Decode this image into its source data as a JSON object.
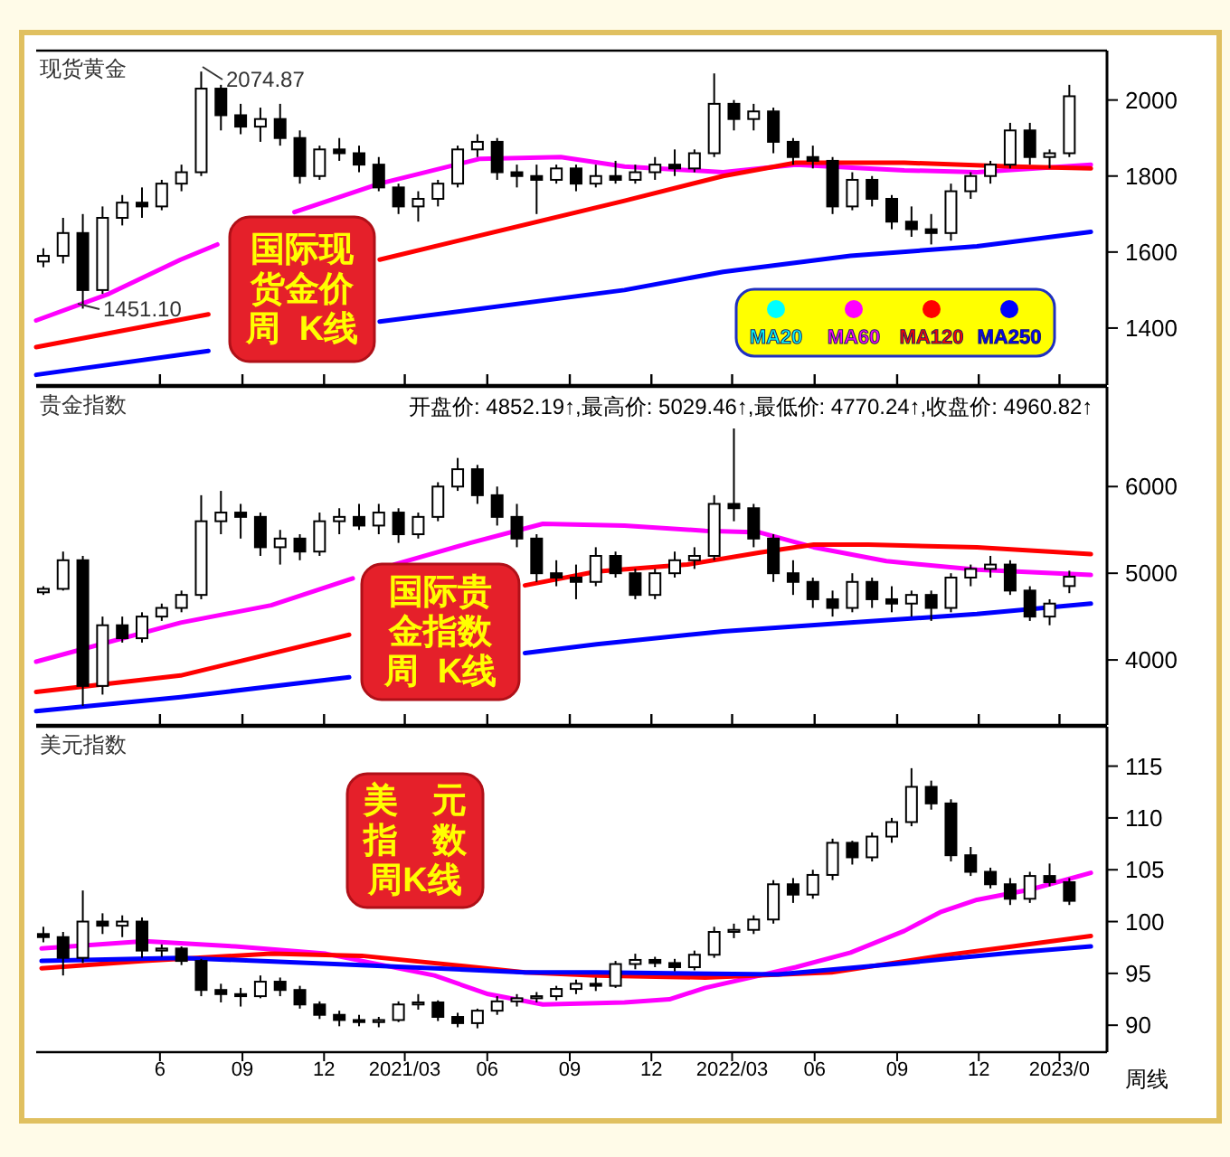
{
  "chart_data": [
    {
      "type": "candlestick",
      "title": "现货黄金",
      "xlim": [
        "2020-01-15",
        "2023-04-23"
      ],
      "ylim": [
        1250,
        2130
      ],
      "yticks": [
        1400,
        1600,
        1800,
        2000
      ],
      "tick_labels": "y",
      "legend": "bottom right",
      "xticks": [
        {
          "value": "2020-06-01",
          "label": null
        },
        {
          "value": "2020-09-01",
          "label": null
        },
        {
          "value": "2020-12-01",
          "label": null
        },
        {
          "value": "2021-03-01",
          "label": null
        },
        {
          "value": "2021-06-01",
          "label": null
        },
        {
          "value": "2021-09-01",
          "label": null
        },
        {
          "value": "2021-12-01",
          "label": null
        },
        {
          "value": "2022-03-01",
          "label": null
        },
        {
          "value": "2022-06-01",
          "label": null
        },
        {
          "value": "2022-09-01",
          "label": null
        },
        {
          "value": "2022-12-01",
          "label": null
        },
        {
          "value": "2023-03-01",
          "label": null
        }
      ],
      "x": [
        "2020-01-23",
        "2020-02-14",
        "2020-03-07",
        "2020-03-29",
        "2020-04-20",
        "2020-05-12",
        "2020-06-03",
        "2020-06-25",
        "2020-07-17",
        "2020-08-08",
        "2020-08-30",
        "2020-09-21",
        "2020-10-13",
        "2020-11-04",
        "2020-11-26",
        "2020-12-18",
        "2021-01-09",
        "2021-01-31",
        "2021-02-22",
        "2021-03-16",
        "2021-04-07",
        "2021-04-29",
        "2021-05-21",
        "2021-06-12",
        "2021-07-04",
        "2021-07-26",
        "2021-08-17",
        "2021-09-08",
        "2021-09-30",
        "2021-10-22",
        "2021-11-13",
        "2021-12-05",
        "2021-12-27",
        "2022-01-18",
        "2022-02-09",
        "2022-03-03",
        "2022-03-25",
        "2022-04-16",
        "2022-05-08",
        "2022-05-30",
        "2022-06-21",
        "2022-07-13",
        "2022-08-04",
        "2022-08-26",
        "2022-09-17",
        "2022-10-09",
        "2022-10-31",
        "2022-11-22",
        "2022-12-14",
        "2023-01-05",
        "2023-01-27",
        "2023-02-18",
        "2023-03-12"
      ],
      "ohlc": [
        [
          1575,
          1610,
          1560,
          1590
        ],
        [
          1590,
          1690,
          1570,
          1650
        ],
        [
          1650,
          1700,
          1451.1,
          1500
        ],
        [
          1500,
          1720,
          1490,
          1690
        ],
        [
          1690,
          1750,
          1670,
          1730
        ],
        [
          1730,
          1770,
          1690,
          1720
        ],
        [
          1720,
          1790,
          1710,
          1780
        ],
        [
          1780,
          1830,
          1760,
          1810
        ],
        [
          1810,
          2074.87,
          1800,
          2030
        ],
        [
          2030,
          2040,
          1920,
          1960
        ],
        [
          1960,
          1990,
          1910,
          1930
        ],
        [
          1930,
          1980,
          1890,
          1950
        ],
        [
          1950,
          1990,
          1880,
          1900
        ],
        [
          1900,
          1920,
          1780,
          1800
        ],
        [
          1800,
          1880,
          1790,
          1870
        ],
        [
          1870,
          1900,
          1840,
          1860
        ],
        [
          1860,
          1880,
          1810,
          1830
        ],
        [
          1830,
          1850,
          1760,
          1770
        ],
        [
          1770,
          1780,
          1700,
          1720
        ],
        [
          1720,
          1760,
          1680,
          1740
        ],
        [
          1740,
          1790,
          1720,
          1780
        ],
        [
          1780,
          1880,
          1770,
          1870
        ],
        [
          1870,
          1910,
          1850,
          1890
        ],
        [
          1890,
          1900,
          1790,
          1810
        ],
        [
          1810,
          1830,
          1770,
          1800
        ],
        [
          1800,
          1830,
          1700,
          1790
        ],
        [
          1790,
          1830,
          1780,
          1820
        ],
        [
          1820,
          1830,
          1760,
          1780
        ],
        [
          1780,
          1830,
          1770,
          1800
        ],
        [
          1800,
          1840,
          1780,
          1790
        ],
        [
          1790,
          1830,
          1780,
          1810
        ],
        [
          1810,
          1850,
          1790,
          1830
        ],
        [
          1830,
          1870,
          1800,
          1820
        ],
        [
          1820,
          1870,
          1810,
          1860
        ],
        [
          1860,
          2070,
          1850,
          1990
        ],
        [
          1990,
          2000,
          1920,
          1950
        ],
        [
          1950,
          1990,
          1920,
          1970
        ],
        [
          1970,
          1980,
          1860,
          1890
        ],
        [
          1890,
          1900,
          1830,
          1850
        ],
        [
          1850,
          1880,
          1820,
          1840
        ],
        [
          1840,
          1850,
          1700,
          1720
        ],
        [
          1720,
          1810,
          1710,
          1790
        ],
        [
          1790,
          1800,
          1720,
          1740
        ],
        [
          1740,
          1750,
          1660,
          1680
        ],
        [
          1680,
          1720,
          1640,
          1660
        ],
        [
          1660,
          1700,
          1620,
          1650
        ],
        [
          1650,
          1780,
          1630,
          1760
        ],
        [
          1760,
          1810,
          1740,
          1800
        ],
        [
          1800,
          1840,
          1780,
          1830
        ],
        [
          1830,
          1940,
          1820,
          1920
        ],
        [
          1920,
          1940,
          1830,
          1850
        ],
        [
          1850,
          1870,
          1820,
          1860
        ],
        [
          1860,
          2040,
          1850,
          2010
        ]
      ],
      "series": [
        {
          "name": "MA20",
          "color": "#00ffff",
          "type": "line",
          "values": [
            null,
            null,
            null,
            null,
            null,
            null,
            null,
            null,
            null,
            null,
            null,
            null,
            null,
            null,
            null,
            null,
            null,
            null,
            null,
            null,
            null,
            null,
            null,
            null,
            null,
            null,
            null,
            null,
            null,
            null,
            null,
            null,
            null,
            null,
            null,
            null,
            null,
            null,
            null,
            null,
            null,
            null,
            null,
            null,
            null,
            null,
            null,
            null,
            null,
            null,
            null,
            null,
            null
          ]
        },
        {
          "name": "MA60",
          "color": "#ff00ff",
          "type": "line",
          "x": [
            "2020-01-15",
            "2020-04-05",
            "2020-06-24",
            "2020-08-04",
            "2020-09-01",
            "2020-10-29",
            "2021-02-01",
            "2021-05-23",
            "2021-08-22",
            "2021-11-01",
            "2022-02-19",
            "2022-05-11",
            "2022-09-09",
            "2022-11-29",
            "2023-04-05"
          ],
          "values": [
            1420,
            1490,
            1580,
            1620,
            null,
            1705,
            1780,
            1845,
            1850,
            1825,
            1810,
            1830,
            1815,
            1810,
            1830
          ]
        },
        {
          "name": "MA120",
          "color": "#ff0000",
          "type": "line",
          "x": [
            "2020-01-15",
            "2020-07-25",
            "2020-10-01",
            "2021-02-01",
            "2021-11-01",
            "2022-02-19",
            "2022-05-11",
            "2022-09-09",
            "2023-01-08",
            "2023-04-05"
          ],
          "values": [
            1350,
            1436,
            null,
            1580,
            1735,
            1800,
            1835,
            1835,
            1825,
            1820
          ]
        },
        {
          "name": "MA250",
          "color": "#0000ff",
          "type": "line",
          "x": [
            "2020-01-15",
            "2020-07-25",
            "2020-10-01",
            "2021-02-01",
            "2021-11-01",
            "2022-02-19",
            "2022-07-11",
            "2022-11-29",
            "2023-04-05"
          ],
          "values": [
            1277,
            1340,
            null,
            1417,
            1500,
            1548,
            1590,
            1615,
            1653
          ]
        }
      ],
      "annotations": [
        "2074.87",
        "1451.10",
        "国际现货金价周  K线"
      ]
    },
    {
      "type": "candlestick",
      "title": "贵金指数",
      "xlim": [
        "2020-01-15",
        "2023-04-23"
      ],
      "ylim": [
        3250,
        7150
      ],
      "yticks": [
        4000,
        5000,
        6000
      ],
      "tick_labels": "y",
      "xticks": [
        {
          "value": "2020-06-01",
          "label": null
        },
        {
          "value": "2020-09-01",
          "label": null
        },
        {
          "value": "2020-12-01",
          "label": null
        },
        {
          "value": "2021-03-01",
          "label": null
        },
        {
          "value": "2021-06-01",
          "label": null
        },
        {
          "value": "2021-09-01",
          "label": null
        },
        {
          "value": "2021-12-01",
          "label": null
        },
        {
          "value": "2022-03-01",
          "label": null
        },
        {
          "value": "2022-06-01",
          "label": null
        },
        {
          "value": "2022-09-01",
          "label": null
        },
        {
          "value": "2022-12-01",
          "label": null
        },
        {
          "value": "2023-03-01",
          "label": null
        }
      ],
      "x": [
        "2020-01-23",
        "2020-02-14",
        "2020-03-07",
        "2020-03-29",
        "2020-04-20",
        "2020-05-12",
        "2020-06-03",
        "2020-06-25",
        "2020-07-17",
        "2020-08-08",
        "2020-08-30",
        "2020-09-21",
        "2020-10-13",
        "2020-11-04",
        "2020-11-26",
        "2020-12-18",
        "2021-01-09",
        "2021-01-31",
        "2021-02-22",
        "2021-03-16",
        "2021-04-07",
        "2021-04-29",
        "2021-05-21",
        "2021-06-12",
        "2021-07-04",
        "2021-07-26",
        "2021-08-17",
        "2021-09-08",
        "2021-09-30",
        "2021-10-22",
        "2021-11-13",
        "2021-12-05",
        "2021-12-27",
        "2022-01-18",
        "2022-02-09",
        "2022-03-03",
        "2022-03-25",
        "2022-04-16",
        "2022-05-08",
        "2022-05-30",
        "2022-06-21",
        "2022-07-13",
        "2022-08-04",
        "2022-08-26",
        "2022-09-17",
        "2022-10-09",
        "2022-10-31",
        "2022-11-22",
        "2022-12-14",
        "2023-01-05",
        "2023-01-27",
        "2023-02-18",
        "2023-03-12"
      ],
      "ohlc": [
        [
          4780,
          4850,
          4750,
          4820
        ],
        [
          4820,
          5250,
          4800,
          5150
        ],
        [
          5150,
          5200,
          3470,
          3700
        ],
        [
          3700,
          4500,
          3600,
          4400
        ],
        [
          4400,
          4500,
          4200,
          4250
        ],
        [
          4250,
          4550,
          4200,
          4500
        ],
        [
          4500,
          4650,
          4450,
          4600
        ],
        [
          4600,
          4800,
          4550,
          4750
        ],
        [
          4750,
          5900,
          4700,
          5600
        ],
        [
          5600,
          5950,
          5450,
          5700
        ],
        [
          5700,
          5800,
          5400,
          5650
        ],
        [
          5650,
          5700,
          5200,
          5300
        ],
        [
          5300,
          5500,
          5100,
          5400
        ],
        [
          5400,
          5450,
          5150,
          5250
        ],
        [
          5250,
          5700,
          5200,
          5600
        ],
        [
          5600,
          5750,
          5450,
          5650
        ],
        [
          5650,
          5800,
          5500,
          5550
        ],
        [
          5550,
          5800,
          5450,
          5700
        ],
        [
          5700,
          5750,
          5350,
          5450
        ],
        [
          5450,
          5700,
          5400,
          5650
        ],
        [
          5650,
          6050,
          5600,
          6000
        ],
        [
          6000,
          6330,
          5950,
          6200
        ],
        [
          6200,
          6250,
          5800,
          5900
        ],
        [
          5900,
          6000,
          5550,
          5650
        ],
        [
          5650,
          5800,
          5300,
          5400
        ],
        [
          5400,
          5450,
          4900,
          5000
        ],
        [
          5000,
          5150,
          4850,
          4950
        ],
        [
          4950,
          5100,
          4700,
          4900
        ],
        [
          4900,
          5300,
          4850,
          5200
        ],
        [
          5200,
          5250,
          4950,
          5000
        ],
        [
          5000,
          5050,
          4700,
          4750
        ],
        [
          4750,
          5050,
          4700,
          5000
        ],
        [
          5000,
          5250,
          4950,
          5150
        ],
        [
          5150,
          5300,
          5050,
          5200
        ],
        [
          5200,
          5900,
          5150,
          5800
        ],
        [
          5800,
          6670,
          5600,
          5750
        ],
        [
          5750,
          5800,
          5300,
          5400
        ],
        [
          5400,
          5450,
          4900,
          5000
        ],
        [
          5000,
          5150,
          4750,
          4900
        ],
        [
          4900,
          4950,
          4600,
          4700
        ],
        [
          4700,
          4800,
          4500,
          4600
        ],
        [
          4600,
          5000,
          4550,
          4900
        ],
        [
          4900,
          4950,
          4600,
          4700
        ],
        [
          4700,
          4850,
          4550,
          4650
        ],
        [
          4650,
          4800,
          4500,
          4750
        ],
        [
          4750,
          4800,
          4450,
          4600
        ],
        [
          4600,
          5000,
          4550,
          4950
        ],
        [
          4950,
          5100,
          4850,
          5050
        ],
        [
          5050,
          5200,
          4950,
          5100
        ],
        [
          5100,
          5150,
          4750,
          4800
        ],
        [
          4800,
          4850,
          4450,
          4500
        ],
        [
          4500,
          4700,
          4400,
          4650
        ],
        [
          4852.19,
          5029.46,
          4770.24,
          4960.82
        ]
      ],
      "series": [
        {
          "color": "#ff00ff",
          "type": "line",
          "x": [
            "2020-01-15",
            "2020-06-24",
            "2020-10-03",
            "2021-01-02",
            "2021-01-20",
            "2021-02-17",
            "2021-05-13",
            "2021-08-02",
            "2021-11-01",
            "2022-01-30",
            "2022-04-01",
            "2022-05-31",
            "2022-08-20",
            "2022-11-29",
            "2023-04-05"
          ],
          "values": [
            3980,
            4430,
            4630,
            4940,
            null,
            5100,
            5350,
            5570,
            5550,
            5490,
            5470,
            5300,
            5140,
            5040,
            4980
          ]
        },
        {
          "color": "#ff0000",
          "type": "line",
          "x": [
            "2020-01-15",
            "2020-06-24",
            "2020-12-29",
            "2021-03-01",
            "2021-07-13",
            "2021-10-01",
            "2022-01-10",
            "2022-04-01",
            "2022-05-31",
            "2022-07-31",
            "2022-11-29",
            "2023-04-05"
          ],
          "values": [
            3630,
            3820,
            4290,
            null,
            4860,
            5020,
            5100,
            5240,
            5330,
            5330,
            5300,
            5220
          ]
        },
        {
          "color": "#0000ff",
          "type": "line",
          "x": [
            "2020-01-15",
            "2020-06-24",
            "2020-12-29",
            "2021-03-01",
            "2021-07-13",
            "2021-10-01",
            "2022-02-19",
            "2022-07-11",
            "2022-11-29",
            "2023-04-05"
          ],
          "values": [
            3410,
            3570,
            3800,
            null,
            4080,
            4180,
            4330,
            4430,
            4530,
            4650
          ]
        }
      ],
      "annotations": [
        "开盘价: 4852.19↑,最高价: 5029.46↑,最低价: 4770.24↑,收盘价: 4960.82↑",
        "国际贵金指数周  K线"
      ]
    },
    {
      "type": "candlestick",
      "title": "美元指数",
      "xlim": [
        "2020-01-15",
        "2023-04-23"
      ],
      "ylim": [
        87.4,
        118.8
      ],
      "yticks": [
        90,
        95,
        100,
        105,
        110,
        115
      ],
      "xticks": [
        {
          "value": "2020-06-01",
          "label": "6"
        },
        {
          "value": "2020-09-01",
          "label": "09"
        },
        {
          "value": "2020-12-01",
          "label": "12"
        },
        {
          "value": "2021-03-01",
          "label": "2021/03"
        },
        {
          "value": "2021-06-01",
          "label": "06"
        },
        {
          "value": "2021-09-01",
          "label": "09"
        },
        {
          "value": "2021-12-01",
          "label": "12"
        },
        {
          "value": "2022-03-01",
          "label": "2022/03"
        },
        {
          "value": "2022-06-01",
          "label": "06"
        },
        {
          "value": "2022-09-01",
          "label": "09"
        },
        {
          "value": "2022-12-01",
          "label": "12"
        },
        {
          "value": "2023-03-01",
          "label": "2023/0"
        }
      ],
      "x": [
        "2020-01-23",
        "2020-02-14",
        "2020-03-07",
        "2020-03-29",
        "2020-04-20",
        "2020-05-12",
        "2020-06-03",
        "2020-06-25",
        "2020-07-17",
        "2020-08-08",
        "2020-08-30",
        "2020-09-21",
        "2020-10-13",
        "2020-11-04",
        "2020-11-26",
        "2020-12-18",
        "2021-01-09",
        "2021-01-31",
        "2021-02-22",
        "2021-03-16",
        "2021-04-07",
        "2021-04-29",
        "2021-05-21",
        "2021-06-12",
        "2021-07-04",
        "2021-07-26",
        "2021-08-17",
        "2021-09-08",
        "2021-09-30",
        "2021-10-22",
        "2021-11-13",
        "2021-12-05",
        "2021-12-27",
        "2022-01-18",
        "2022-02-09",
        "2022-03-03",
        "2022-03-25",
        "2022-04-16",
        "2022-05-08",
        "2022-05-30",
        "2022-06-21",
        "2022-07-13",
        "2022-08-04",
        "2022-08-26",
        "2022-09-17",
        "2022-10-09",
        "2022-10-31",
        "2022-11-22",
        "2022-12-14",
        "2023-01-05",
        "2023-01-27",
        "2023-02-18",
        "2023-03-12"
      ],
      "ohlc": [
        [
          98.8,
          99.5,
          98.0,
          98.5
        ],
        [
          98.5,
          99.0,
          94.8,
          96.5
        ],
        [
          96.5,
          103.0,
          96.0,
          100.0
        ],
        [
          100.0,
          100.8,
          98.8,
          99.6
        ],
        [
          99.6,
          100.6,
          98.5,
          100.0
        ],
        [
          100.0,
          100.4,
          96.5,
          97.2
        ],
        [
          97.2,
          97.8,
          96.6,
          97.4
        ],
        [
          97.4,
          97.6,
          95.8,
          96.2
        ],
        [
          96.2,
          96.4,
          92.8,
          93.4
        ],
        [
          93.4,
          94.0,
          92.2,
          93.0
        ],
        [
          93.0,
          93.6,
          91.8,
          92.8
        ],
        [
          92.8,
          94.8,
          92.6,
          94.2
        ],
        [
          94.2,
          94.6,
          92.8,
          93.4
        ],
        [
          93.4,
          93.8,
          91.6,
          92.0
        ],
        [
          92.0,
          92.3,
          90.6,
          91.0
        ],
        [
          91.0,
          91.4,
          89.9,
          90.5
        ],
        [
          90.5,
          91.0,
          89.9,
          90.3
        ],
        [
          90.3,
          90.8,
          89.8,
          90.5
        ],
        [
          90.5,
          92.3,
          90.3,
          92.0
        ],
        [
          92.0,
          93.0,
          91.5,
          92.2
        ],
        [
          92.2,
          92.4,
          90.4,
          90.8
        ],
        [
          90.8,
          91.2,
          89.8,
          90.2
        ],
        [
          90.2,
          91.6,
          89.7,
          91.4
        ],
        [
          91.4,
          92.8,
          91.0,
          92.3
        ],
        [
          92.3,
          93.0,
          91.8,
          92.6
        ],
        [
          92.6,
          93.2,
          92.2,
          92.8
        ],
        [
          92.8,
          93.8,
          92.4,
          93.5
        ],
        [
          93.5,
          94.4,
          93.0,
          94.0
        ],
        [
          94.0,
          94.6,
          93.3,
          93.8
        ],
        [
          93.8,
          96.2,
          93.6,
          95.9
        ],
        [
          95.9,
          96.9,
          95.4,
          96.3
        ],
        [
          96.3,
          96.6,
          95.6,
          96.0
        ],
        [
          96.0,
          96.4,
          95.2,
          95.6
        ],
        [
          95.6,
          97.2,
          95.3,
          96.8
        ],
        [
          96.8,
          99.5,
          96.5,
          99.0
        ],
        [
          99.0,
          99.8,
          98.4,
          99.2
        ],
        [
          99.2,
          100.6,
          98.8,
          100.2
        ],
        [
          100.2,
          104.0,
          99.8,
          103.6
        ],
        [
          103.6,
          104.2,
          101.8,
          102.6
        ],
        [
          102.6,
          105.0,
          102.2,
          104.5
        ],
        [
          104.5,
          108.0,
          104.0,
          107.6
        ],
        [
          107.6,
          107.8,
          105.5,
          106.2
        ],
        [
          106.2,
          108.6,
          105.8,
          108.2
        ],
        [
          108.2,
          110.0,
          107.6,
          109.6
        ],
        [
          109.6,
          114.8,
          109.2,
          113.0
        ],
        [
          113.0,
          113.6,
          110.8,
          111.4
        ],
        [
          111.4,
          111.8,
          105.8,
          106.4
        ],
        [
          106.4,
          107.2,
          104.4,
          104.8
        ],
        [
          104.8,
          105.2,
          103.2,
          103.6
        ],
        [
          103.6,
          104.2,
          101.6,
          102.2
        ],
        [
          102.2,
          104.8,
          101.8,
          104.4
        ],
        [
          104.4,
          105.6,
          103.4,
          103.8
        ],
        [
          103.8,
          104.2,
          101.6,
          102.0
        ]
      ],
      "series": [
        {
          "color": "#ff00ff",
          "type": "line",
          "x": [
            "2020-01-21",
            "2020-05-15",
            "2020-08-24",
            "2020-12-03",
            "2021-04-03",
            "2021-06-02",
            "2021-08-02",
            "2021-11-01",
            "2021-12-21",
            "2022-01-30",
            "2022-05-11",
            "2022-07-11",
            "2022-09-09",
            "2022-10-19",
            "2022-11-29",
            "2023-01-28",
            "2023-04-05"
          ],
          "values": [
            97.4,
            98.1,
            97.6,
            96.9,
            94.8,
            93.0,
            92.0,
            92.2,
            92.5,
            93.6,
            95.6,
            97.0,
            99.1,
            100.9,
            102.1,
            103.1,
            104.7
          ]
        },
        {
          "color": "#ff0000",
          "type": "line",
          "x": [
            "2020-01-21",
            "2020-05-15",
            "2020-10-03",
            "2021-01-12",
            "2021-07-13",
            "2021-10-01",
            "2022-01-30",
            "2022-06-20",
            "2022-10-19",
            "2023-01-08",
            "2023-04-05"
          ],
          "values": [
            95.5,
            96.2,
            96.9,
            96.7,
            95.1,
            94.8,
            94.6,
            95.1,
            96.7,
            97.6,
            98.6
          ]
        },
        {
          "color": "#0000ff",
          "type": "line",
          "x": [
            "2020-01-21",
            "2020-06-24",
            "2021-01-12",
            "2021-07-13",
            "2021-10-01",
            "2022-04-21",
            "2022-09-09",
            "2023-01-08",
            "2023-04-05"
          ],
          "values": [
            96.2,
            96.5,
            95.8,
            95.1,
            95.1,
            94.9,
            96.0,
            97.0,
            97.6
          ]
        }
      ],
      "annotations": [
        "美　元指　数周K线",
        "周线"
      ]
    }
  ]
}
